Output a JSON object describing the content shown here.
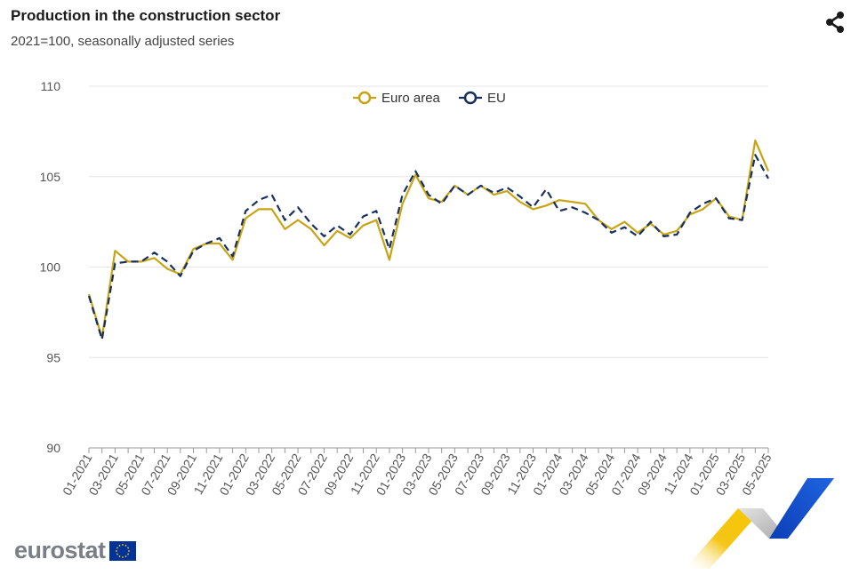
{
  "header": {
    "title": "Production in the construction sector",
    "subtitle": "2021=100, seasonally adjusted series"
  },
  "icons": {
    "share": "share-icon"
  },
  "logo": {
    "text": "eurostat",
    "flag_blue": "#003399",
    "star_color": "#ffcc00"
  },
  "colors": {
    "euro_area": "#c8a415",
    "eu": "#17305e",
    "grid": "#e6e6e6"
  },
  "chart_data": {
    "type": "line",
    "title": "Production in the construction sector",
    "subtitle": "2021=100, seasonally adjusted series",
    "xlabel": "",
    "ylabel": "",
    "ylim": [
      90,
      110
    ],
    "yticks": [
      90,
      95,
      100,
      105,
      110
    ],
    "grid": true,
    "legend_position": "top-center",
    "x": [
      "01-2021",
      "02-2021",
      "03-2021",
      "04-2021",
      "05-2021",
      "06-2021",
      "07-2021",
      "08-2021",
      "09-2021",
      "10-2021",
      "11-2021",
      "12-2021",
      "01-2022",
      "02-2022",
      "03-2022",
      "04-2022",
      "05-2022",
      "06-2022",
      "07-2022",
      "08-2022",
      "09-2022",
      "10-2022",
      "11-2022",
      "12-2022",
      "01-2023",
      "02-2023",
      "03-2023",
      "04-2023",
      "05-2023",
      "06-2023",
      "07-2023",
      "08-2023",
      "09-2023",
      "10-2023",
      "11-2023",
      "12-2023",
      "01-2024",
      "02-2024",
      "03-2024",
      "04-2024",
      "05-2024",
      "06-2024",
      "07-2024",
      "08-2024",
      "09-2024",
      "10-2024",
      "11-2024",
      "12-2024",
      "01-2025",
      "02-2025",
      "03-2025",
      "04-2025",
      "05-2025"
    ],
    "xtick_labels": [
      "01-2021",
      "03-2021",
      "05-2021",
      "07-2021",
      "09-2021",
      "11-2021",
      "01-2022",
      "03-2022",
      "05-2022",
      "07-2022",
      "09-2022",
      "11-2022",
      "01-2023",
      "03-2023",
      "05-2023",
      "07-2023",
      "09-2023",
      "11-2023",
      "01-2024",
      "03-2024",
      "05-2024",
      "07-2024",
      "09-2024",
      "11-2024",
      "01-2025",
      "03-2025",
      "05-2025"
    ],
    "series": [
      {
        "name": "Euro area",
        "values": [
          98.5,
          96.1,
          100.9,
          100.3,
          100.3,
          100.5,
          99.9,
          99.6,
          101.0,
          101.3,
          101.3,
          100.4,
          102.7,
          103.2,
          103.2,
          102.1,
          102.6,
          102.1,
          101.2,
          102.0,
          101.6,
          102.3,
          102.6,
          100.4,
          103.5,
          105.1,
          103.8,
          103.6,
          104.5,
          104.0,
          104.5,
          104.0,
          104.2,
          103.6,
          103.2,
          103.4,
          103.7,
          103.6,
          103.5,
          102.6,
          102.1,
          102.5,
          101.9,
          102.4,
          101.8,
          102.0,
          102.9,
          103.2,
          103.8,
          102.8,
          102.6,
          107.0,
          105.3
        ]
      },
      {
        "name": "EU",
        "values": [
          98.4,
          96.0,
          100.2,
          100.3,
          100.3,
          100.8,
          100.3,
          99.5,
          100.9,
          101.3,
          101.6,
          100.6,
          103.1,
          103.7,
          104.0,
          102.6,
          103.3,
          102.4,
          101.7,
          102.3,
          101.8,
          102.8,
          103.1,
          101.0,
          104.0,
          105.3,
          104.0,
          103.5,
          104.5,
          104.0,
          104.5,
          104.1,
          104.4,
          103.9,
          103.3,
          104.3,
          103.1,
          103.3,
          103.0,
          102.6,
          101.9,
          102.2,
          101.7,
          102.5,
          101.7,
          101.8,
          103.0,
          103.5,
          103.8,
          102.7,
          102.6,
          106.2,
          104.9
        ]
      }
    ]
  }
}
